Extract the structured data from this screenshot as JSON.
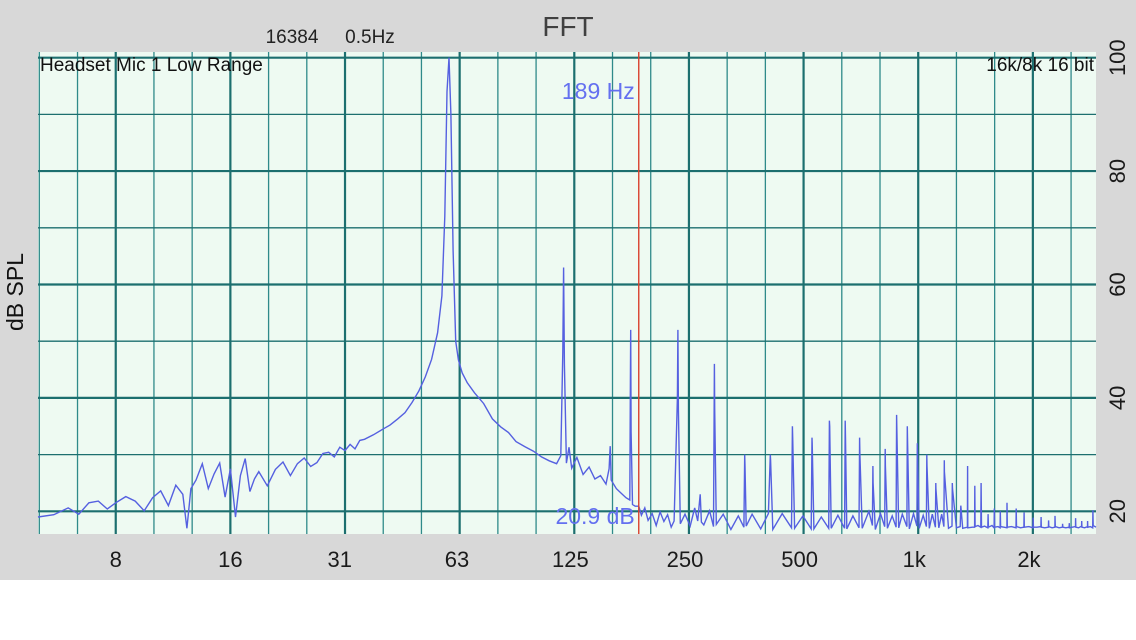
{
  "title": "FFT",
  "header": {
    "fft_size": "16384",
    "resolution": "0.5Hz"
  },
  "colors": {
    "frame_background": "#d8d8d8",
    "plot_background": "#eefaf2",
    "grid_major": "#1c6f6f",
    "grid_minor": "#2f8a8a",
    "trace": "#5560e0",
    "cursor": "#d9402e",
    "readout": "#6470f0"
  },
  "chart_data": {
    "type": "line",
    "title": "FFT",
    "xlabel": "",
    "ylabel": "dB SPL",
    "x_scale": "log",
    "xlim": [
      5,
      3000
    ],
    "ylim": [
      16,
      101
    ],
    "grid": true,
    "corner_labels": {
      "top_left": "Headset Mic 1 Low Range",
      "top_right": "16k/8k 16 bit"
    },
    "x_ticks": [
      {
        "value": 8,
        "label": "8"
      },
      {
        "value": 16,
        "label": "16"
      },
      {
        "value": 31,
        "label": "31"
      },
      {
        "value": 63,
        "label": "63"
      },
      {
        "value": 125,
        "label": "125"
      },
      {
        "value": 250,
        "label": "250"
      },
      {
        "value": 500,
        "label": "500"
      },
      {
        "value": 1000,
        "label": "1k"
      },
      {
        "value": 2000,
        "label": "2k"
      }
    ],
    "y_ticks": [
      {
        "value": 20,
        "label": "20"
      },
      {
        "value": 40,
        "label": "40"
      },
      {
        "value": 60,
        "label": "60"
      },
      {
        "value": 80,
        "label": "80"
      },
      {
        "value": 100,
        "label": "100"
      }
    ],
    "cursor": {
      "frequency": 189,
      "frequency_label": "189 Hz",
      "level_label": "20.9 dB"
    },
    "series": [
      {
        "values_db": [
          [
            5,
            19
          ],
          [
            5.5,
            19.4
          ],
          [
            6,
            20.6
          ],
          [
            6.4,
            19.5
          ],
          [
            6.8,
            21.5
          ],
          [
            7.2,
            21.8
          ],
          [
            7.6,
            20.4
          ],
          [
            8,
            21.5
          ],
          [
            8.5,
            22.6
          ],
          [
            9,
            21.8
          ],
          [
            9.5,
            20.1
          ],
          [
            10,
            22.4
          ],
          [
            10.5,
            23.6
          ],
          [
            11,
            21
          ],
          [
            11.5,
            24.6
          ],
          [
            12,
            23
          ],
          [
            12.3,
            17
          ],
          [
            12.6,
            24
          ],
          [
            13,
            25.5
          ],
          [
            13.5,
            28.4
          ],
          [
            14,
            24
          ],
          [
            14.5,
            26.6
          ],
          [
            15,
            28.5
          ],
          [
            15.5,
            22.5
          ],
          [
            16,
            27.5
          ],
          [
            16.5,
            19
          ],
          [
            17,
            26.3
          ],
          [
            17.5,
            29.3
          ],
          [
            18,
            23.5
          ],
          [
            18.5,
            25.7
          ],
          [
            19,
            27
          ],
          [
            20,
            24.5
          ],
          [
            21,
            27.4
          ],
          [
            22,
            28.7
          ],
          [
            23,
            26.3
          ],
          [
            24,
            28.4
          ],
          [
            25,
            29.4
          ],
          [
            26,
            27.9
          ],
          [
            27,
            28.6
          ],
          [
            28,
            30.2
          ],
          [
            29,
            30.4
          ],
          [
            30,
            29.6
          ],
          [
            31,
            31.3
          ],
          [
            32,
            30.7
          ],
          [
            33,
            31.8
          ],
          [
            34,
            31
          ],
          [
            35,
            32.5
          ],
          [
            36,
            32.7
          ],
          [
            38,
            33.5
          ],
          [
            40,
            34.4
          ],
          [
            42,
            35.2
          ],
          [
            44,
            36.3
          ],
          [
            46,
            37.4
          ],
          [
            48,
            39.2
          ],
          [
            50,
            41.2
          ],
          [
            52,
            43.7
          ],
          [
            54,
            46.8
          ],
          [
            56,
            51.5
          ],
          [
            57.5,
            58
          ],
          [
            58.5,
            72
          ],
          [
            59.3,
            94
          ],
          [
            60,
            100
          ],
          [
            60.7,
            90
          ],
          [
            61.5,
            66
          ],
          [
            62.5,
            50
          ],
          [
            63.5,
            46.7
          ],
          [
            65,
            44.4
          ],
          [
            67,
            42.7
          ],
          [
            70,
            40.9
          ],
          [
            74,
            39
          ],
          [
            78,
            36.3
          ],
          [
            82,
            34.9
          ],
          [
            86,
            33.9
          ],
          [
            90,
            32.3
          ],
          [
            95,
            31.4
          ],
          [
            100,
            30.6
          ],
          [
            105,
            29.6
          ],
          [
            110,
            28.9
          ],
          [
            115,
            28.4
          ],
          [
            118,
            29.8
          ],
          [
            119.4,
            48
          ],
          [
            120,
            63
          ],
          [
            120.6,
            46
          ],
          [
            122,
            28.5
          ],
          [
            124,
            31.3
          ],
          [
            126,
            27.6
          ],
          [
            130,
            29.5
          ],
          [
            135,
            26.5
          ],
          [
            140,
            27.8
          ],
          [
            145,
            25.7
          ],
          [
            150,
            26.3
          ],
          [
            155,
            24.8
          ],
          [
            158,
            27.5
          ],
          [
            159,
            31.5
          ],
          [
            160,
            25.5
          ],
          [
            165,
            24
          ],
          [
            170,
            23.2
          ],
          [
            175,
            22.4
          ],
          [
            179,
            22
          ],
          [
            179.6,
            40
          ],
          [
            180,
            52
          ],
          [
            180.4,
            34
          ],
          [
            182,
            21.2
          ],
          [
            185,
            20.9
          ],
          [
            189,
            20.9
          ],
          [
            192,
            19.3
          ],
          [
            196,
            20.6
          ],
          [
            200,
            18.4
          ],
          [
            205,
            19.6
          ],
          [
            210,
            17.5
          ],
          [
            215,
            19.9
          ],
          [
            220,
            18.2
          ],
          [
            225,
            19.4
          ],
          [
            230,
            17.2
          ],
          [
            234,
            18.3
          ],
          [
            238.8,
            40
          ],
          [
            239.5,
            52
          ],
          [
            240.2,
            38
          ],
          [
            243,
            17.8
          ],
          [
            250,
            19.5
          ],
          [
            258,
            17.4
          ],
          [
            265,
            20.6
          ],
          [
            270,
            18.3
          ],
          [
            274,
            23
          ],
          [
            276,
            18.1
          ],
          [
            280,
            17.6
          ],
          [
            290,
            20.1
          ],
          [
            297,
            17.3
          ],
          [
            298.6,
            46
          ],
          [
            299.2,
            38
          ],
          [
            302,
            17.7
          ],
          [
            315,
            19.5
          ],
          [
            330,
            16.8
          ],
          [
            345,
            19.2
          ],
          [
            357,
            17.2
          ],
          [
            358.6,
            30
          ],
          [
            359.4,
            28
          ],
          [
            362,
            17.4
          ],
          [
            375,
            19.5
          ],
          [
            395,
            16.9
          ],
          [
            414,
            19.6
          ],
          [
            418.6,
            30
          ],
          [
            419.4,
            29
          ],
          [
            425,
            16.8
          ],
          [
            450,
            19.6
          ],
          [
            476,
            17.1
          ],
          [
            478.6,
            35
          ],
          [
            479.5,
            33
          ],
          [
            485,
            17
          ],
          [
            510,
            19.2
          ],
          [
            536,
            16.9
          ],
          [
            538.6,
            33
          ],
          [
            539.5,
            32
          ],
          [
            545,
            16.9
          ],
          [
            570,
            19
          ],
          [
            596,
            17
          ],
          [
            598.6,
            36
          ],
          [
            599.5,
            35
          ],
          [
            605,
            17
          ],
          [
            630,
            19.3
          ],
          [
            656,
            17
          ],
          [
            658.6,
            36
          ],
          [
            659.5,
            33
          ],
          [
            665,
            16.9
          ],
          [
            690,
            19.2
          ],
          [
            716,
            17.1
          ],
          [
            718.6,
            33
          ],
          [
            719.5,
            30
          ],
          [
            730,
            17
          ],
          [
            760,
            20
          ],
          [
            776,
            17.5
          ],
          [
            778.6,
            28
          ],
          [
            779.5,
            25
          ],
          [
            790,
            16.8
          ],
          [
            815,
            19.6
          ],
          [
            836,
            17.3
          ],
          [
            838.6,
            31
          ],
          [
            839.5,
            28
          ],
          [
            850,
            17
          ],
          [
            875,
            19.2
          ],
          [
            896,
            17.2
          ],
          [
            898.6,
            37
          ],
          [
            899.5,
            35
          ],
          [
            910,
            17.1
          ],
          [
            930,
            19.5
          ],
          [
            956,
            17.3
          ],
          [
            958.6,
            35
          ],
          [
            959.5,
            33
          ],
          [
            970,
            16.9
          ],
          [
            995,
            19.6
          ],
          [
            1016,
            17.4
          ],
          [
            1018.6,
            32
          ],
          [
            1019.5,
            30
          ],
          [
            1030,
            17
          ],
          [
            1055,
            19.3
          ],
          [
            1076,
            17.3
          ],
          [
            1078.6,
            30
          ],
          [
            1079.5,
            28
          ],
          [
            1095,
            17
          ],
          [
            1115,
            19.5
          ],
          [
            1136,
            17.2
          ],
          [
            1138.6,
            25
          ],
          [
            1139.5,
            24
          ],
          [
            1160,
            17.1
          ],
          [
            1180,
            19.5
          ],
          [
            1196,
            17.3
          ],
          [
            1198.6,
            29
          ],
          [
            1199.5,
            27
          ],
          [
            1230,
            17
          ],
          [
            1256,
            17.4
          ],
          [
            1258.6,
            25
          ],
          [
            1259.5,
            24
          ],
          [
            1290,
            17.1
          ],
          [
            1320,
            17.3
          ],
          [
            1325,
            21
          ],
          [
            1340,
            17
          ],
          [
            1379,
            17.2
          ],
          [
            1380.5,
            28
          ],
          [
            1382,
            17.1
          ],
          [
            1420,
            17.2
          ],
          [
            1440,
            17.2
          ],
          [
            1442,
            24.5
          ],
          [
            1444,
            17.3
          ],
          [
            1470,
            17.5
          ],
          [
            1495,
            17.2
          ],
          [
            1498,
            25
          ],
          [
            1501,
            17.2
          ],
          [
            1530,
            17.4
          ],
          [
            1560,
            17.1
          ],
          [
            1562,
            19.5
          ],
          [
            1565,
            17.2
          ],
          [
            1600,
            17.5
          ],
          [
            1620,
            17.1
          ],
          [
            1622,
            20.5
          ],
          [
            1625,
            17.2
          ],
          [
            1660,
            17.3
          ],
          [
            1680,
            17.1
          ],
          [
            1682,
            20
          ],
          [
            1685,
            17.3
          ],
          [
            1720,
            17.2
          ],
          [
            1750,
            17.1
          ],
          [
            1752,
            21.5
          ],
          [
            1755,
            17.2
          ],
          [
            1800,
            17.3
          ],
          [
            1850,
            17.1
          ],
          [
            1852,
            20.5
          ],
          [
            1855,
            17.3
          ],
          [
            1900,
            17.1
          ],
          [
            1940,
            17.2
          ],
          [
            1942,
            19.8
          ],
          [
            1945,
            17.2
          ],
          [
            2000,
            17.3
          ],
          [
            2050,
            17.1
          ],
          [
            2052,
            18.9
          ],
          [
            2055,
            17.2
          ],
          [
            2100,
            17.2
          ],
          [
            2150,
            17.3
          ],
          [
            2152,
            19
          ],
          [
            2155,
            17.2
          ],
          [
            2200,
            17.1
          ],
          [
            2250,
            17.2
          ],
          [
            2252,
            18.4
          ],
          [
            2255,
            17.3
          ],
          [
            2300,
            17.1
          ],
          [
            2340,
            17.2
          ],
          [
            2342,
            19.2
          ],
          [
            2345,
            17.3
          ],
          [
            2400,
            17.1
          ],
          [
            2450,
            17.2
          ],
          [
            2452,
            17.8
          ],
          [
            2455,
            17.2
          ],
          [
            2500,
            17.1
          ],
          [
            2550,
            17.2
          ],
          [
            2552,
            17.9
          ],
          [
            2555,
            17.1
          ],
          [
            2600,
            17.2
          ],
          [
            2650,
            17.3
          ],
          [
            2652,
            18.8
          ],
          [
            2655,
            17.2
          ],
          [
            2700,
            17.1
          ],
          [
            2750,
            17.4
          ],
          [
            2752,
            18.3
          ],
          [
            2755,
            17.2
          ],
          [
            2800,
            17.1
          ],
          [
            2850,
            17.3
          ],
          [
            2852,
            18.3
          ],
          [
            2855,
            17.2
          ],
          [
            2900,
            17.3
          ],
          [
            2940,
            17.1
          ],
          [
            2945,
            20.2
          ],
          [
            2950,
            17.5
          ],
          [
            3000,
            17.2
          ]
        ]
      }
    ]
  }
}
